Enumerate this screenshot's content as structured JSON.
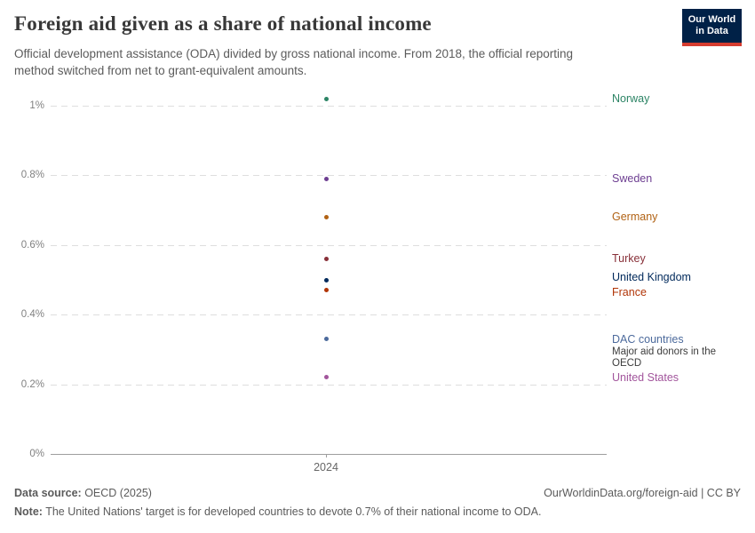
{
  "header": {
    "title": "Foreign aid given as a share of national income",
    "subtitle": "Official development assistance (ODA) divided by gross national income. From 2018, the official reporting method switched from net to grant-equivalent amounts.",
    "logo": {
      "line1": "Our World",
      "line2": "in Data",
      "bg_color": "#002147",
      "accent_color": "#d63c2f"
    }
  },
  "chart_data": {
    "type": "scatter",
    "title": "Foreign aid given as a share of national income",
    "xlabel": "",
    "ylabel": "",
    "x": [
      2024
    ],
    "x_tick_label": "2024",
    "ylim": [
      0,
      1.05
    ],
    "grid": true,
    "legend_position": "right-entity-labels",
    "y_ticks": [
      {
        "value": 0,
        "label": "0%"
      },
      {
        "value": 0.2,
        "label": "0.2%"
      },
      {
        "value": 0.4,
        "label": "0.4%"
      },
      {
        "value": 0.6,
        "label": "0.6%"
      },
      {
        "value": 0.8,
        "label": "0.8%"
      },
      {
        "value": 1,
        "label": "1%"
      }
    ],
    "series": [
      {
        "name": "Norway",
        "year": 2024,
        "value": 1.02,
        "color": "#2C8465"
      },
      {
        "name": "Sweden",
        "year": 2024,
        "value": 0.79,
        "color": "#6D3E91"
      },
      {
        "name": "Germany",
        "year": 2024,
        "value": 0.68,
        "color": "#B16214"
      },
      {
        "name": "Turkey",
        "year": 2024,
        "value": 0.56,
        "color": "#883039"
      },
      {
        "name": "United Kingdom",
        "year": 2024,
        "value": 0.5,
        "color": "#00295B"
      },
      {
        "name": "France",
        "year": 2024,
        "value": 0.47,
        "color": "#B13507"
      },
      {
        "name": "DAC countries",
        "year": 2024,
        "value": 0.33,
        "color": "#4C6A9C",
        "note": "Major aid donors in the OECD"
      },
      {
        "name": "United States",
        "year": 2024,
        "value": 0.22,
        "color": "#A2559C"
      }
    ]
  },
  "footer": {
    "data_source_label": "Data source:",
    "data_source_value": " OECD (2025)",
    "attribution": "OurWorldinData.org/foreign-aid | CC BY",
    "note_label": "Note:",
    "note_value": " The United Nations' target is for developed countries to devote 0.7% of their national income to ODA."
  }
}
